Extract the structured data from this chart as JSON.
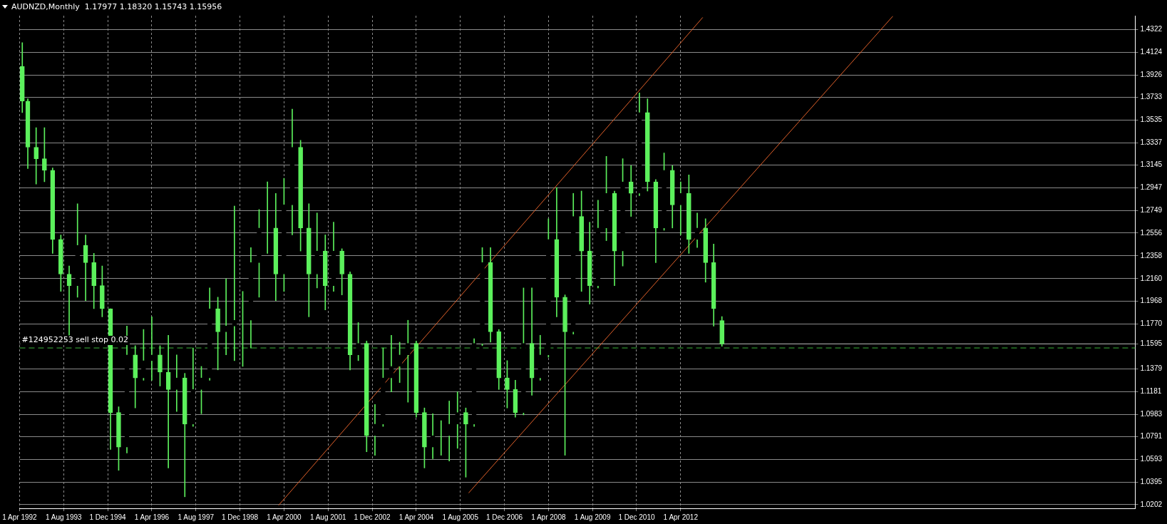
{
  "chart_data": {
    "type": "candlestick",
    "title": "AUDNZD,Monthly  1.17977 1.18320 1.15743 1.15956",
    "color": "#5cf05c",
    "x": [
      "1992-05",
      "1992-07",
      "1992-10",
      "1993-01",
      "1993-04",
      "1993-07",
      "1993-10",
      "1994-01",
      "1994-04",
      "1994-07",
      "1994-10",
      "1995-01",
      "1995-04",
      "1995-07",
      "1995-10",
      "1996-01",
      "1996-04",
      "1996-07",
      "1996-10",
      "1997-01",
      "1997-04",
      "1997-07",
      "1997-10",
      "1998-01",
      "1998-04",
      "1998-07",
      "1998-10",
      "1999-01",
      "1999-04",
      "1999-07",
      "1999-10",
      "2000-01",
      "2000-04",
      "2000-07",
      "2000-10",
      "2001-01",
      "2001-04",
      "2001-07",
      "2001-10",
      "2002-01",
      "2002-04",
      "2002-07",
      "2002-10",
      "2003-01",
      "2003-04",
      "2003-07",
      "2003-10",
      "2004-01",
      "2004-04",
      "2004-07",
      "2004-10",
      "2005-01",
      "2005-04",
      "2005-07",
      "2005-10",
      "2006-01",
      "2006-04",
      "2006-07",
      "2006-10",
      "2007-01",
      "2007-04",
      "2007-07",
      "2007-10",
      "2008-01",
      "2008-04",
      "2008-07",
      "2008-10",
      "2009-01",
      "2009-04",
      "2009-07",
      "2009-10",
      "2010-01",
      "2010-04",
      "2010-07",
      "2010-10",
      "2011-01",
      "2011-04",
      "2011-07",
      "2011-10",
      "2012-01",
      "2012-04",
      "2012-07",
      "2012-10",
      "2013-01",
      "2013-04",
      "2013-07"
    ],
    "ohlc": [
      [
        1.4,
        1.4207,
        1.36,
        1.37
      ],
      [
        1.37,
        1.372,
        1.3115,
        1.33
      ],
      [
        1.33,
        1.347,
        1.298,
        1.32
      ],
      [
        1.32,
        1.347,
        1.3,
        1.31
      ],
      [
        1.31,
        1.312,
        1.238,
        1.25
      ],
      [
        1.25,
        1.254,
        1.205,
        1.22
      ],
      [
        1.22,
        1.227,
        1.167,
        1.21
      ],
      [
        1.21,
        1.281,
        1.2,
        1.245
      ],
      [
        1.245,
        1.254,
        1.197,
        1.23
      ],
      [
        1.23,
        1.238,
        1.19,
        1.21
      ],
      [
        1.21,
        1.227,
        1.183,
        1.19
      ],
      [
        1.19,
        1.19,
        1.068,
        1.1
      ],
      [
        1.1,
        1.105,
        1.05,
        1.07
      ],
      [
        1.07,
        1.175,
        1.065,
        1.15
      ],
      [
        1.15,
        1.158,
        1.104,
        1.13
      ],
      [
        1.13,
        1.172,
        1.128,
        1.145
      ],
      [
        1.145,
        1.183,
        1.128,
        1.15
      ],
      [
        1.15,
        1.158,
        1.123,
        1.135
      ],
      [
        1.135,
        1.167,
        1.052,
        1.12
      ],
      [
        1.12,
        1.15,
        1.101,
        1.13
      ],
      [
        1.13,
        1.134,
        1.027,
        1.09
      ],
      [
        1.09,
        1.156,
        1.088,
        1.12
      ],
      [
        1.12,
        1.14,
        1.099,
        1.13
      ],
      [
        1.13,
        1.208,
        1.128,
        1.19
      ],
      [
        1.19,
        1.2,
        1.137,
        1.17
      ],
      [
        1.17,
        1.216,
        1.15,
        1.175
      ],
      [
        1.175,
        1.279,
        1.145,
        1.18
      ],
      [
        1.18,
        1.205,
        1.14,
        1.18
      ],
      [
        1.18,
        1.243,
        1.156,
        1.23
      ],
      [
        1.23,
        1.276,
        1.2,
        1.26
      ],
      [
        1.26,
        1.3,
        1.238,
        1.26
      ],
      [
        1.26,
        1.29,
        1.197,
        1.22
      ],
      [
        1.22,
        1.303,
        1.205,
        1.28
      ],
      [
        1.28,
        1.363,
        1.254,
        1.33
      ],
      [
        1.33,
        1.336,
        1.24,
        1.26
      ],
      [
        1.26,
        1.281,
        1.183,
        1.22
      ],
      [
        1.22,
        1.273,
        1.208,
        1.24
      ],
      [
        1.24,
        1.254,
        1.189,
        1.21
      ],
      [
        1.21,
        1.265,
        1.205,
        1.24
      ],
      [
        1.24,
        1.242,
        1.202,
        1.22
      ],
      [
        1.22,
        1.222,
        1.137,
        1.15
      ],
      [
        1.15,
        1.178,
        1.145,
        1.16
      ],
      [
        1.16,
        1.162,
        1.066,
        1.08
      ],
      [
        1.08,
        1.107,
        1.063,
        1.09
      ],
      [
        1.09,
        1.156,
        1.088,
        1.13
      ],
      [
        1.13,
        1.167,
        1.118,
        1.14
      ],
      [
        1.14,
        1.161,
        1.126,
        1.15
      ],
      [
        1.15,
        1.18,
        1.109,
        1.16
      ],
      [
        1.16,
        1.162,
        1.096,
        1.1
      ],
      [
        1.1,
        1.104,
        1.052,
        1.07
      ],
      [
        1.07,
        1.099,
        1.06,
        1.08
      ],
      [
        1.08,
        1.093,
        1.063,
        1.08
      ],
      [
        1.08,
        1.11,
        1.058,
        1.09
      ],
      [
        1.09,
        1.118,
        1.069,
        1.1
      ],
      [
        1.1,
        1.104,
        1.044,
        1.09
      ],
      [
        1.09,
        1.164,
        1.088,
        1.16
      ],
      [
        1.16,
        1.243,
        1.158,
        1.23
      ],
      [
        1.23,
        1.243,
        1.161,
        1.17
      ],
      [
        1.17,
        1.172,
        1.12,
        1.13
      ],
      [
        1.13,
        1.145,
        1.104,
        1.12
      ],
      [
        1.12,
        1.128,
        1.096,
        1.1
      ],
      [
        1.1,
        1.208,
        1.098,
        1.16
      ],
      [
        1.16,
        1.208,
        1.115,
        1.13
      ],
      [
        1.13,
        1.167,
        1.128,
        1.15
      ],
      [
        1.15,
        1.268,
        1.148,
        1.25
      ],
      [
        1.25,
        1.295,
        1.183,
        1.2
      ],
      [
        1.2,
        1.202,
        1.063,
        1.17
      ],
      [
        1.17,
        1.29,
        1.168,
        1.27
      ],
      [
        1.27,
        1.292,
        1.205,
        1.24
      ],
      [
        1.24,
        1.265,
        1.194,
        1.21
      ],
      [
        1.21,
        1.284,
        1.208,
        1.26
      ],
      [
        1.26,
        1.322,
        1.249,
        1.29
      ],
      [
        1.29,
        1.292,
        1.21,
        1.24
      ],
      [
        1.24,
        1.32,
        1.227,
        1.3
      ],
      [
        1.3,
        1.314,
        1.27,
        1.29
      ],
      [
        1.29,
        1.377,
        1.288,
        1.36
      ],
      [
        1.36,
        1.372,
        1.292,
        1.3
      ],
      [
        1.3,
        1.302,
        1.23,
        1.26
      ],
      [
        1.26,
        1.325,
        1.258,
        1.31
      ],
      [
        1.31,
        1.314,
        1.26,
        1.28
      ],
      [
        1.28,
        1.3,
        1.254,
        1.29
      ],
      [
        1.29,
        1.306,
        1.238,
        1.25
      ],
      [
        1.25,
        1.273,
        1.243,
        1.26
      ],
      [
        1.26,
        1.268,
        1.213,
        1.23
      ],
      [
        1.23,
        1.246,
        1.175,
        1.19
      ],
      [
        1.17977,
        1.1832,
        1.15743,
        1.15956
      ]
    ],
    "colors": [
      "#5cf05d",
      "#5cf05c",
      "#5cf05c",
      "#5cf05c",
      "#5cf05c",
      "#5cf05c",
      "#5cf05c",
      "#000000",
      "#5cf05c",
      "#5cf05c",
      "#5cf05c",
      "#5cf05c",
      "#5cf05c",
      "#000000",
      "#5cf05c",
      "#000000",
      "#000000",
      "#5cf05c",
      "#5cf05c",
      "#000000",
      "#5cf05c",
      "#000000",
      "#000000",
      "#000000",
      "#5cf05c",
      "#000000",
      "#000000",
      "#000000",
      "#000000",
      "#000000",
      "#000000",
      "#5cf05c",
      "#000000",
      "#000000",
      "#5cf05c",
      "#5cf05c",
      "#000000",
      "#5cf05c",
      "#000000",
      "#5cf05c",
      "#5cf05c",
      "#000000",
      "#5cf05c",
      "#000000",
      "#000000",
      "#000000",
      "#000000",
      "#000000",
      "#5cf05c",
      "#5cf05c",
      "#000000",
      "#000000",
      "#000000",
      "#000000",
      "#5cf05c",
      "#000000",
      "#000000",
      "#5cf05c",
      "#5cf05c",
      "#5cf05c",
      "#5cf05c",
      "#000000",
      "#5cf05c",
      "#000000",
      "#000000",
      "#5cf05c",
      "#5cf05c",
      "#000000",
      "#5cf05c",
      "#5cf05c",
      "#000000",
      "#000000",
      "#5cf05c",
      "#000000",
      "#5cf05c",
      "#000000",
      "#5cf05c",
      "#5cf05c",
      "#000000",
      "#5cf05c",
      "#000000",
      "#5cf05c",
      "#000000",
      "#5cf05c",
      "#5cf05c",
      "#5cf05c"
    ],
    "series": [
      {
        "type": "line",
        "color": "#e0602a",
        "x": [
          "2000-02",
          "2012-12"
        ],
        "values": [
          1.0196,
          1.4425
        ]
      },
      {
        "type": "line",
        "color": "#e0602a",
        "x": [
          "2005-11",
          "2018-09"
        ],
        "values": [
          1.0303,
          1.4435
        ]
      }
    ],
    "xlim": [
      "1992-04-01",
      "2026-01-01"
    ],
    "xticks": [
      {
        "value": "1992-04-01",
        "label": "1 Apr 1992"
      },
      {
        "value": "1993-08-01",
        "label": "1 Aug 1993"
      },
      {
        "value": "1994-12-01",
        "label": "1 Dec 1994"
      },
      {
        "value": "1996-04-01",
        "label": "1 Apr 1996"
      },
      {
        "value": "1997-08-01",
        "label": "1 Aug 1997"
      },
      {
        "value": "1998-12-01",
        "label": "1 Dec 1998"
      },
      {
        "value": "2000-04-01",
        "label": "1 Apr 2000"
      },
      {
        "value": "2001-08-01",
        "label": "1 Aug 2001"
      },
      {
        "value": "2002-12-01",
        "label": "1 Dec 2002"
      },
      {
        "value": "2004-04-01",
        "label": "1 Apr 2004"
      },
      {
        "value": "2005-08-01",
        "label": "1 Aug 2005"
      },
      {
        "value": "2006-12-01",
        "label": "1 Dec 2006"
      },
      {
        "value": "2008-04-01",
        "label": "1 Apr 2008"
      },
      {
        "value": "2009-08-01",
        "label": "1 Aug 2009"
      },
      {
        "value": "2010-12-01",
        "label": "1 Dec 2010"
      },
      {
        "value": "2012-04-01",
        "label": "1 Apr 2012"
      }
    ],
    "ylim": [
      1.017,
      1.444
    ],
    "yticks": [
      1.4322,
      1.4124,
      1.3926,
      1.3733,
      1.3535,
      1.3337,
      1.3145,
      1.2947,
      1.2749,
      1.2556,
      1.2358,
      {
        "value": 1.216,
        "label": "1.2160"
      },
      1.1968,
      {
        "value": 1.177,
        "label": "1.1770"
      },
      1.1595,
      1.1379,
      1.1181,
      1.0983,
      1.0791,
      1.0593,
      1.0395,
      1.0202
    ],
    "ref_lines": [
      {
        "axis": "y",
        "value": 1.15956,
        "color": "#a0a0a0",
        "line_style": "solid"
      },
      {
        "axis": "y",
        "value": 1.156,
        "color": "#3cb43c",
        "line_style": "dashed",
        "label": "#124952253 sell stop 0.02"
      }
    ],
    "grid": true
  }
}
